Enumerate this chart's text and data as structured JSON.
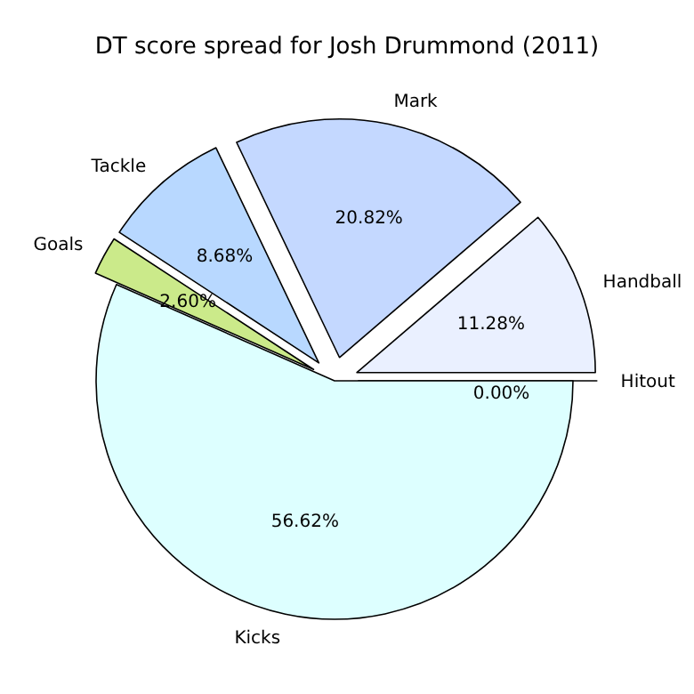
{
  "chart_data": {
    "type": "pie",
    "title": "DT score spread for Josh Drummond (2011)",
    "categories": [
      "Hitout",
      "Handball",
      "Mark",
      "Tackle",
      "Goals",
      "Kicks"
    ],
    "values": [
      0,
      11.28,
      20.82,
      8.68,
      2.6,
      56.62
    ],
    "colors": [
      "#f0f4ff",
      "#eaf0ff",
      "#c4d8ff",
      "#b8d8ff",
      "#cbea8a",
      "#ddffff"
    ],
    "value_labels": [
      "0.00%",
      "11.28%",
      "20.82%",
      "8.68%",
      "2.60%",
      "56.62%"
    ]
  }
}
